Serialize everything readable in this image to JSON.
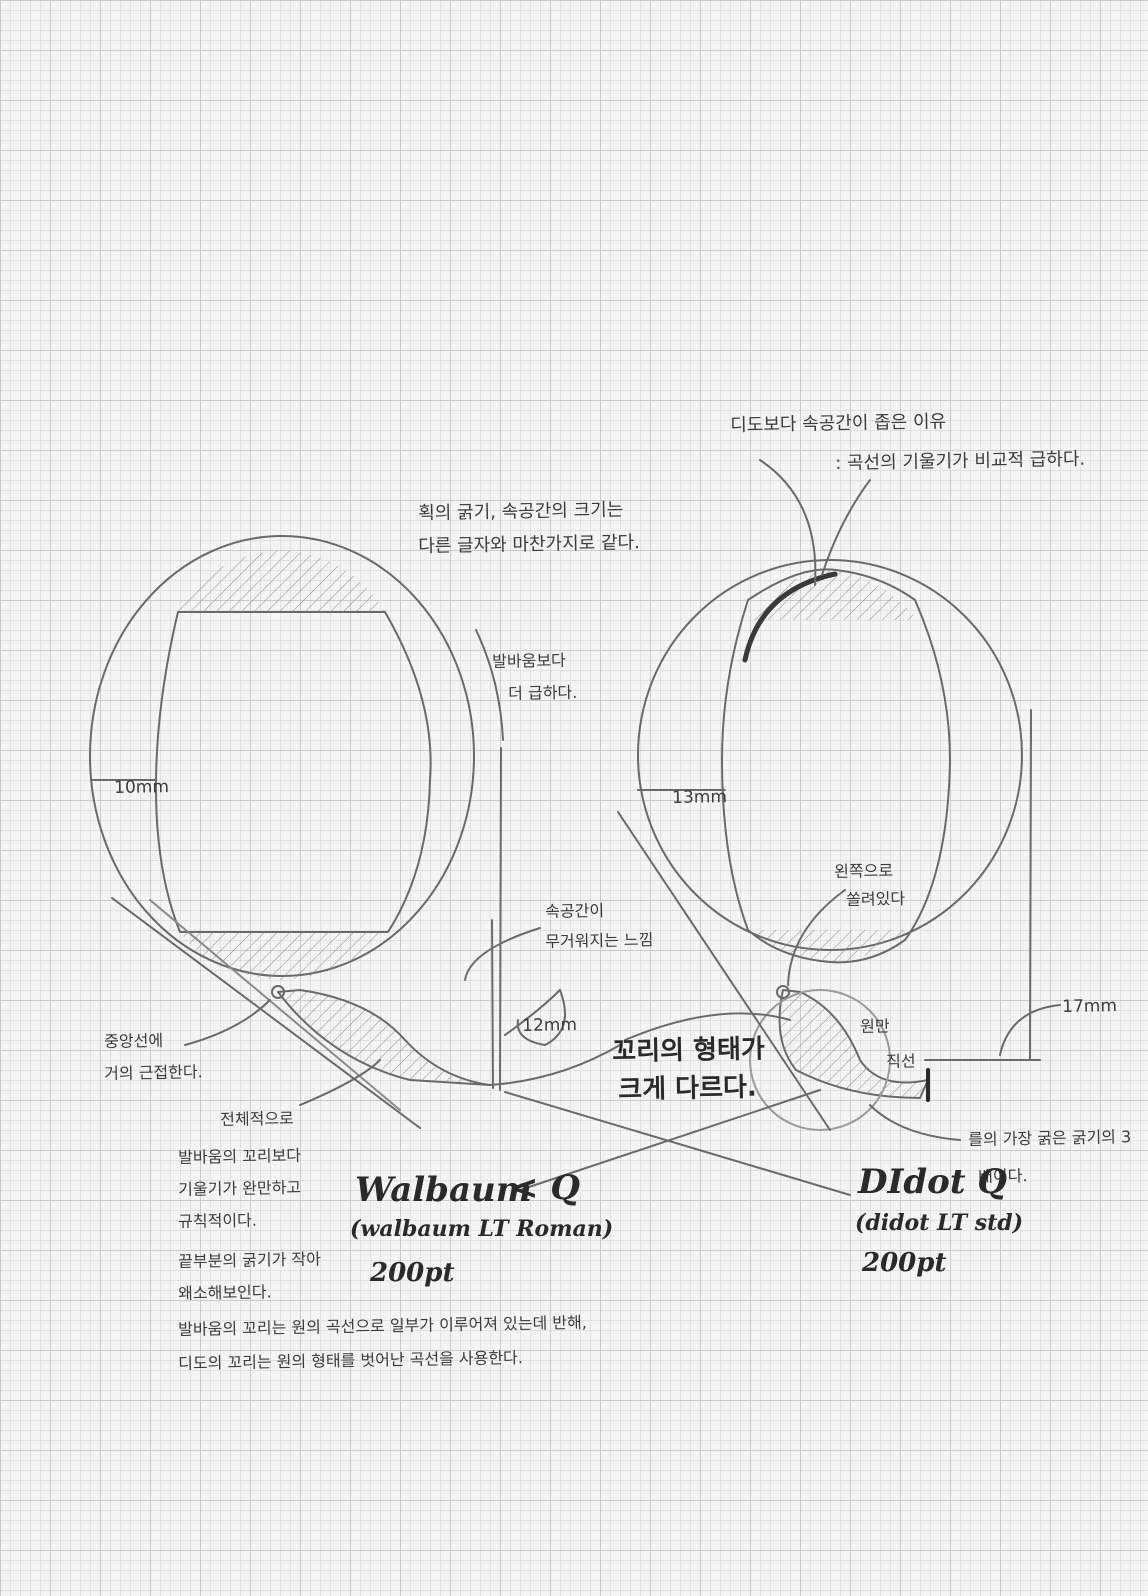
{
  "figure": {
    "stroke_color": "#555555",
    "grid_color": "#c9cbcc",
    "paper_color": "#f4f4f2"
  },
  "notes": {
    "top_right_reason": "디도보다 속공간이 좁은 이유",
    "top_right_because": ": 곡선의 기울기가 비교적 급하다.",
    "top_center_line1": "획의 굵기, 속공간의 크기는",
    "top_center_line2": "다른 글자와 마찬가지로 같다.",
    "slope_line1": "발바움보다",
    "slope_line2": "더 급하다.",
    "measure_left": "10mm",
    "measure_right": "13mm",
    "counter_line1": "속공간이",
    "counter_line2": "무거워지는 느낌",
    "measure_tail": "12mm",
    "center_line1": "중앙선에",
    "center_line2": "거의 근접한다.",
    "overall_label": "전체적으로",
    "tail_diff_line1": "꼬리의 형태가",
    "tail_diff_line2": "크게 다르다.",
    "left_side_line1": "왼쪽으로",
    "left_side_line2": "쏠려있다",
    "circle_label": "원만",
    "straight_label": "직선",
    "measure_right_tail": "17mm",
    "thickest_line": "를의 가장 굵은 굵기의 3",
    "thickest_line2": "배이다.",
    "walbaum_desc_1": "발바움의 꼬리보다",
    "walbaum_desc_2": "기울기가 완만하고",
    "walbaum_desc_3": "규칙적이다.",
    "walbaum_desc_4": "끝부분의 굵기가 작아",
    "walbaum_desc_5": "왜소해보인다.",
    "bottom_line1": "발바움의 꼬리는 원의 곡선으로 일부가 이루어져 있는데 반해,",
    "bottom_line2": "디도의 꼬리는 원의 형태를 벗어난 곡선을 사용한다."
  },
  "labels": {
    "walbaum_name": "Walbaum",
    "walbaum_q": "< Q",
    "walbaum_font": "(walbaum LT Roman)",
    "walbaum_size": "200pt",
    "didot_name": "DIdot Q",
    "didot_font": "(didot LT std)",
    "didot_size": "200pt"
  }
}
